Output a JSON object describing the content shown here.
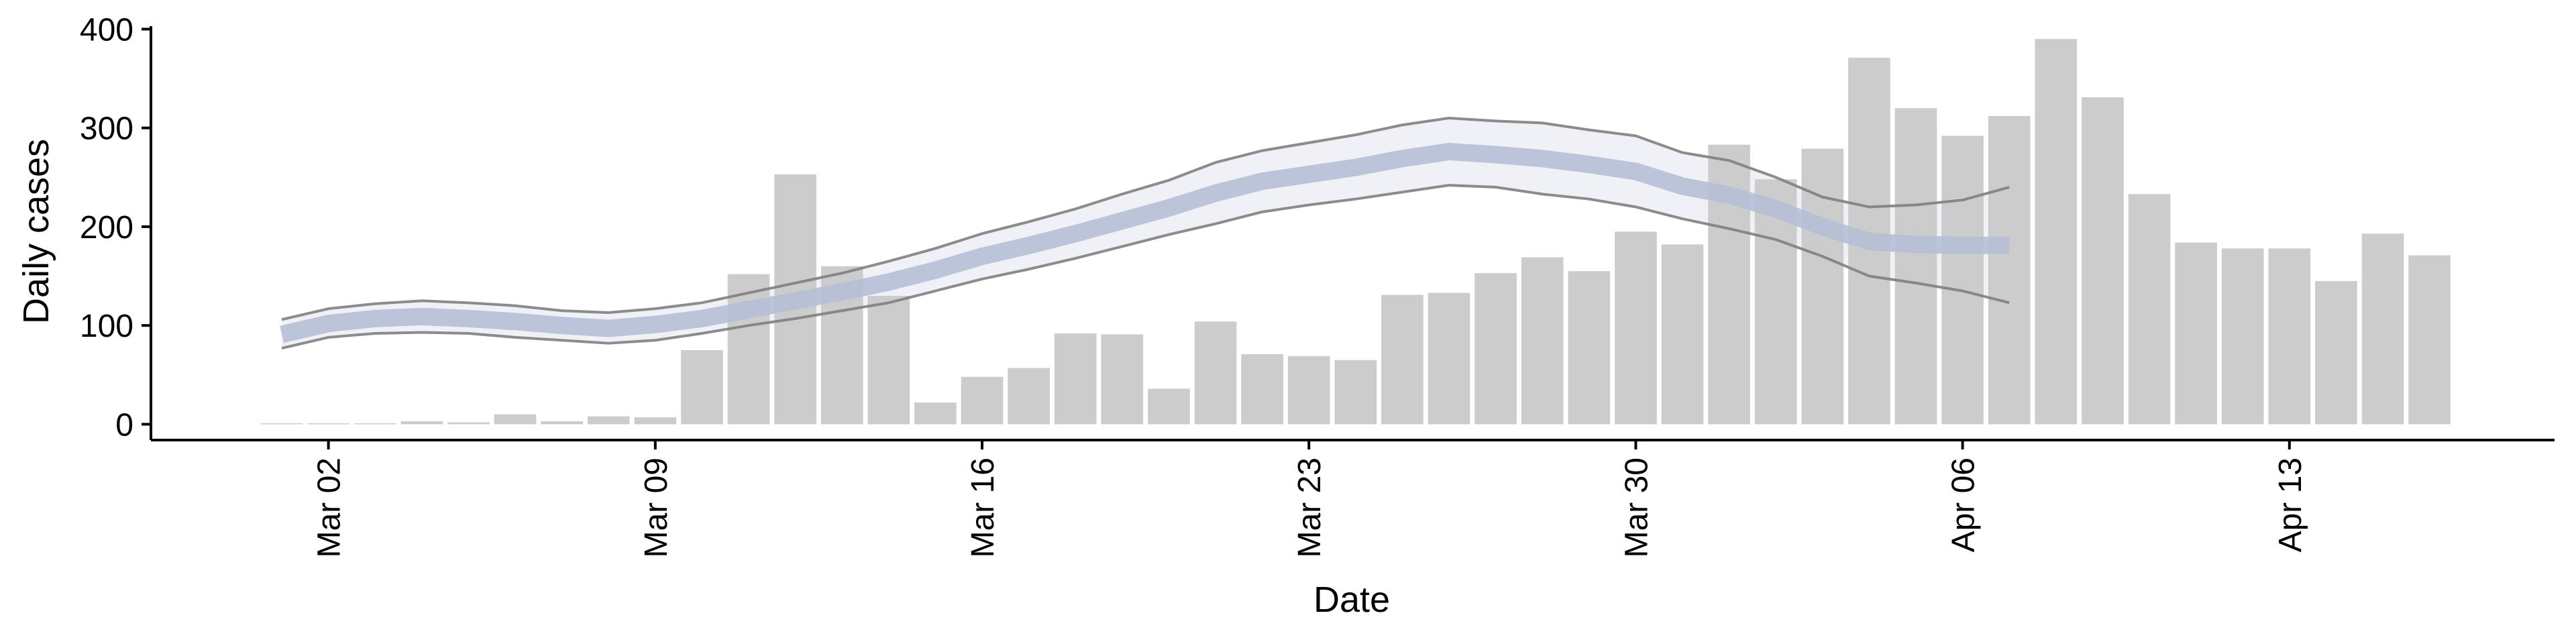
{
  "chart_data": {
    "type": "bar",
    "x_label": "Date",
    "y_label": "Daily cases",
    "categories": [
      "Mar 01",
      "Mar 02",
      "Mar 03",
      "Mar 04",
      "Mar 05",
      "Mar 06",
      "Mar 07",
      "Mar 08",
      "Mar 09",
      "Mar 10",
      "Mar 11",
      "Mar 12",
      "Mar 13",
      "Mar 14",
      "Mar 15",
      "Mar 16",
      "Mar 17",
      "Mar 18",
      "Mar 19",
      "Mar 20",
      "Mar 21",
      "Mar 22",
      "Mar 23",
      "Mar 24",
      "Mar 25",
      "Mar 26",
      "Mar 27",
      "Mar 28",
      "Mar 29",
      "Mar 30",
      "Mar 31",
      "Apr 01",
      "Apr 02",
      "Apr 03",
      "Apr 04",
      "Apr 05",
      "Apr 06",
      "Apr 07",
      "Apr 08",
      "Apr 09",
      "Apr 10",
      "Apr 11",
      "Apr 12",
      "Apr 13",
      "Apr 14",
      "Apr 15",
      "Apr 16"
    ],
    "xticks": [
      "Mar 02",
      "Mar 09",
      "Mar 16",
      "Mar 23",
      "Mar 30",
      "Apr 06",
      "Apr 13"
    ],
    "ylim": [
      -16,
      403
    ],
    "yticks": [
      0,
      100,
      200,
      300,
      400
    ],
    "band_color": "#eceef4",
    "series": [
      {
        "type": "bar",
        "color": "#cccccc",
        "values": [
          1,
          1,
          1,
          3,
          2,
          10,
          3,
          8,
          7,
          75,
          152,
          253,
          160,
          130,
          22,
          48,
          57,
          92,
          91,
          36,
          104,
          71,
          69,
          65,
          131,
          133,
          153,
          169,
          155,
          195,
          182,
          283,
          248,
          279,
          371,
          320,
          292,
          312,
          390,
          331,
          233,
          184,
          178,
          178,
          145,
          193,
          171
        ]
      },
      {
        "type": "line",
        "color": "#7f7f7f",
        "width": 4,
        "values": [
          106,
          117,
          122,
          125,
          123,
          120,
          115,
          113,
          117,
          123,
          133,
          143,
          153,
          165,
          178,
          193,
          205,
          218,
          233,
          247,
          265,
          277,
          285,
          293,
          303,
          310,
          307,
          305,
          298,
          292,
          275,
          267,
          250,
          230,
          220,
          222,
          227,
          240,
          null,
          null,
          null,
          null,
          null,
          null,
          null,
          null,
          null
        ]
      },
      {
        "type": "line",
        "color": "#7f7f7f",
        "width": 4,
        "values": [
          77,
          88,
          92,
          93,
          92,
          88,
          85,
          82,
          85,
          92,
          100,
          107,
          115,
          123,
          135,
          147,
          157,
          168,
          180,
          192,
          203,
          215,
          222,
          228,
          235,
          242,
          240,
          233,
          228,
          220,
          208,
          198,
          187,
          170,
          150,
          143,
          135,
          123,
          null,
          null,
          null,
          null,
          null,
          null,
          null,
          null,
          null
        ]
      },
      {
        "type": "line",
        "color": "#b6bfd6",
        "width": 26,
        "values": [
          91,
          102,
          107,
          109,
          107,
          104,
          100,
          97,
          101,
          107,
          116,
          125,
          134,
          144,
          156,
          170,
          181,
          193,
          206,
          219,
          234,
          246,
          253,
          260,
          269,
          276,
          273,
          269,
          263,
          256,
          241,
          232,
          218,
          200,
          185,
          182,
          181,
          181,
          null,
          null,
          null,
          null,
          null,
          null,
          null,
          null,
          null
        ]
      }
    ]
  }
}
